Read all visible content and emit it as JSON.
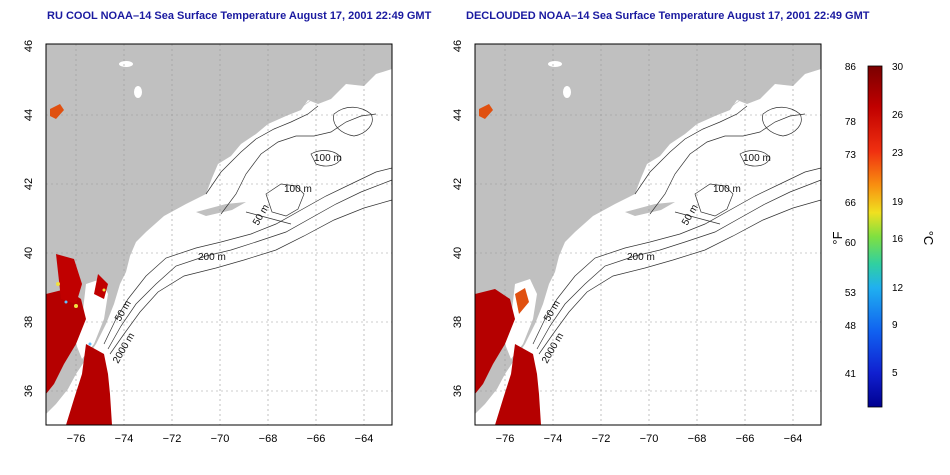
{
  "maps": [
    {
      "title": "RU COOL NOAA–14 Sea Surface Temperature August 17, 2001 22:49 GMT",
      "contour_labels": [
        "100 m",
        "100 m",
        "50 m",
        "200 m",
        "50 m",
        "2000 m"
      ]
    },
    {
      "title": "DECLOUDED NOAA–14 Sea Surface Temperature August 17, 2001 22:49 GMT",
      "contour_labels": [
        "100 m",
        "100 m",
        "50 m",
        "200 m",
        "50 m",
        "2000 m"
      ]
    }
  ],
  "axes": {
    "lon_ticks": [
      "−76",
      "−74",
      "−72",
      "−70",
      "−68",
      "−66",
      "−64"
    ],
    "lat_ticks": [
      "36",
      "38",
      "40",
      "42",
      "44",
      "46"
    ]
  },
  "colorbar": {
    "f_label": "°F",
    "c_label": "°C",
    "f_ticks": [
      "86",
      "78",
      "73",
      "66",
      "60",
      "53",
      "48",
      "41"
    ],
    "c_ticks": [
      "30",
      "26",
      "23",
      "19",
      "16",
      "12",
      "9",
      "5"
    ],
    "colors": [
      "#7a0000",
      "#b00000",
      "#e01010",
      "#f04a10",
      "#f8a010",
      "#f0e020",
      "#80e040",
      "#30d0d0",
      "#20a0f0",
      "#1040f0",
      "#0010a0"
    ]
  },
  "colors": {
    "land": "#c0c0c0",
    "ocean": "#ffffff",
    "title": "#1a1aa0",
    "sst_hot": "#b50000"
  }
}
